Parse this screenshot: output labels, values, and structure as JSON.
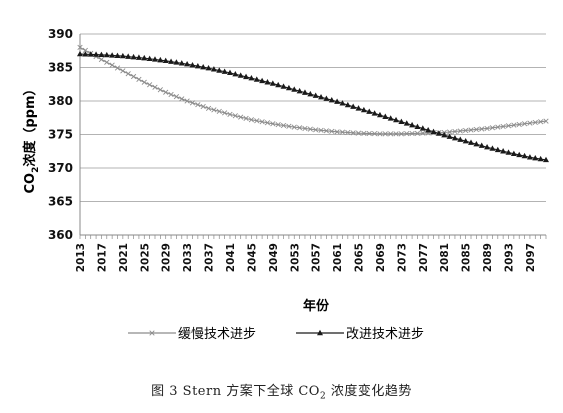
{
  "chart_data": {
    "type": "line",
    "xlabel": "年份",
    "ylabel_main": "CO",
    "ylabel_sub": "2",
    "ylabel_rest": "浓度（ppm）",
    "ylim": [
      360,
      390
    ],
    "yticks": [
      360,
      365,
      370,
      375,
      380,
      385,
      390
    ],
    "x_range": [
      2013,
      2100
    ],
    "x_tick_labels": [
      2013,
      2017,
      2021,
      2025,
      2029,
      2033,
      2037,
      2041,
      2045,
      2049,
      2053,
      2057,
      2061,
      2065,
      2069,
      2073,
      2077,
      2081,
      2085,
      2089,
      2093,
      2097
    ],
    "grid": "horizontal",
    "legend_position": "bottom",
    "series": [
      {
        "name": "缓慢技术进步",
        "marker": "x",
        "color": "#8c8c8c",
        "points": [
          [
            2013,
            388.0
          ],
          [
            2017,
            386.2
          ],
          [
            2021,
            384.5
          ],
          [
            2025,
            382.8
          ],
          [
            2029,
            381.3
          ],
          [
            2033,
            380.0
          ],
          [
            2037,
            378.9
          ],
          [
            2041,
            378.0
          ],
          [
            2045,
            377.2
          ],
          [
            2049,
            376.6
          ],
          [
            2053,
            376.1
          ],
          [
            2057,
            375.7
          ],
          [
            2061,
            375.4
          ],
          [
            2065,
            375.2
          ],
          [
            2069,
            375.1
          ],
          [
            2073,
            375.1
          ],
          [
            2077,
            375.2
          ],
          [
            2081,
            375.3
          ],
          [
            2085,
            375.6
          ],
          [
            2089,
            375.9
          ],
          [
            2093,
            376.3
          ],
          [
            2097,
            376.7
          ],
          [
            2100,
            377.0
          ]
        ]
      },
      {
        "name": "改进技术进步",
        "marker": "triangle",
        "color": "#1a1a1a",
        "points": [
          [
            2013,
            387.0
          ],
          [
            2017,
            386.9
          ],
          [
            2021,
            386.7
          ],
          [
            2025,
            386.4
          ],
          [
            2029,
            386.0
          ],
          [
            2033,
            385.5
          ],
          [
            2037,
            384.9
          ],
          [
            2041,
            384.2
          ],
          [
            2045,
            383.4
          ],
          [
            2049,
            382.6
          ],
          [
            2053,
            381.7
          ],
          [
            2057,
            380.8
          ],
          [
            2061,
            379.9
          ],
          [
            2065,
            378.9
          ],
          [
            2069,
            377.9
          ],
          [
            2073,
            376.9
          ],
          [
            2077,
            375.9
          ],
          [
            2081,
            374.9
          ],
          [
            2085,
            374.0
          ],
          [
            2089,
            373.1
          ],
          [
            2093,
            372.3
          ],
          [
            2097,
            371.6
          ],
          [
            2100,
            371.2
          ]
        ]
      }
    ]
  },
  "caption": {
    "prefix": "图 3  Stern 方案下全球 CO",
    "sub": "2",
    "suffix": " 浓度变化趋势"
  }
}
